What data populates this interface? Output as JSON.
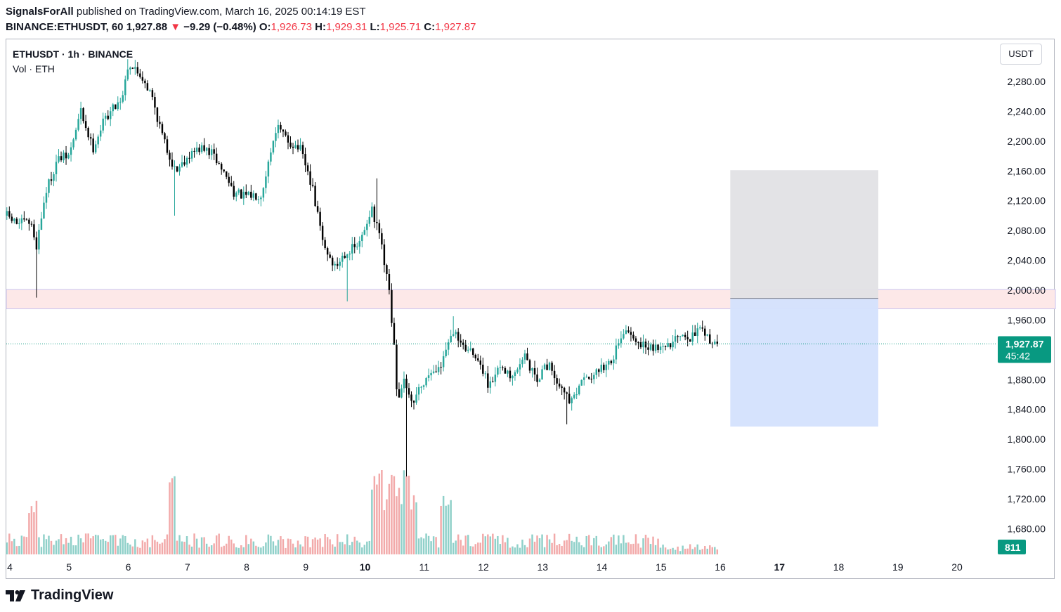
{
  "header": {
    "author": "SignalsForAll",
    "published_text": " published on TradingView.com, March 16, 2025 00:14:19 EST",
    "symbol_line": "BINANCE:ETHUSDT, 60",
    "last": "1,927.88",
    "change_arrow": "▼",
    "change": "−9.29 (−0.48%)",
    "o_label": "O:",
    "o_value": "1,926.73",
    "h_label": "H:",
    "h_value": "1,929.31",
    "l_label": "L:",
    "l_value": "1,925.71",
    "c_label": "C:",
    "c_value": "1,927.87"
  },
  "legend": {
    "symbol": "ETHUSDT · 1h · BINANCE",
    "volume": "Vol · ETH"
  },
  "currency_button": "USDT",
  "price_badge": {
    "price": "1,927.87",
    "countdown": "45:42"
  },
  "volume_badge": "811",
  "brand": "TradingView",
  "colors": {
    "up": "#26a69a",
    "down": "#000000",
    "vol_up": "#8fd0c9",
    "vol_down": "#f2a9a9",
    "badge": "#089981",
    "zone": "#fde8e8",
    "stop": "#e1e2e5",
    "target": "#d4e2fd"
  },
  "chart_data": {
    "type": "candlestick",
    "symbol": "ETHUSDT",
    "interval": "1h",
    "exchange": "BINANCE",
    "y_axis_labels": [
      "2,280.00",
      "2,240.00",
      "2,200.00",
      "2,160.00",
      "2,120.00",
      "2,080.00",
      "2,040.00",
      "2,000.00",
      "1,960.00",
      "1,880.00",
      "1,840.00",
      "1,800.00",
      "1,760.00",
      "1,720.00",
      "1,680.00"
    ],
    "y_axis_values": [
      2280,
      2240,
      2200,
      2160,
      2120,
      2080,
      2040,
      2000,
      1960,
      1880,
      1840,
      1800,
      1760,
      1720,
      1680
    ],
    "ylim": [
      1640,
      2320
    ],
    "x_axis_labels": [
      {
        "label": "4",
        "day": 4,
        "bold": false
      },
      {
        "label": "5",
        "day": 5,
        "bold": false
      },
      {
        "label": "6",
        "day": 6,
        "bold": false
      },
      {
        "label": "7",
        "day": 7,
        "bold": false
      },
      {
        "label": "8",
        "day": 8,
        "bold": false
      },
      {
        "label": "9",
        "day": 9,
        "bold": false
      },
      {
        "label": "10",
        "day": 10,
        "bold": true
      },
      {
        "label": "11",
        "day": 11,
        "bold": false
      },
      {
        "label": "12",
        "day": 12,
        "bold": false
      },
      {
        "label": "13",
        "day": 13,
        "bold": false
      },
      {
        "label": "14",
        "day": 14,
        "bold": false
      },
      {
        "label": "15",
        "day": 15,
        "bold": false
      },
      {
        "label": "16",
        "day": 16,
        "bold": false
      },
      {
        "label": "17",
        "day": 17,
        "bold": true
      },
      {
        "label": "18",
        "day": 18,
        "bold": false
      },
      {
        "label": "19",
        "day": 19,
        "bold": false
      },
      {
        "label": "20",
        "day": 20,
        "bold": false
      }
    ],
    "x_range_days": [
      3.95,
      20.8
    ],
    "last_day": 15.95,
    "last_price": 1927.87,
    "price_path": [
      [
        3.95,
        2100
      ],
      [
        4.1,
        2090
      ],
      [
        4.35,
        2090
      ],
      [
        4.45,
        2060
      ],
      [
        4.6,
        2130
      ],
      [
        4.8,
        2175
      ],
      [
        5.0,
        2180
      ],
      [
        5.2,
        2240
      ],
      [
        5.4,
        2190
      ],
      [
        5.6,
        2230
      ],
      [
        5.9,
        2260
      ],
      [
        6.0,
        2305
      ],
      [
        6.25,
        2285
      ],
      [
        6.4,
        2260
      ],
      [
        6.6,
        2200
      ],
      [
        6.8,
        2160
      ],
      [
        7.0,
        2180
      ],
      [
        7.2,
        2190
      ],
      [
        7.4,
        2185
      ],
      [
        7.6,
        2160
      ],
      [
        7.8,
        2130
      ],
      [
        8.0,
        2125
      ],
      [
        8.25,
        2130
      ],
      [
        8.5,
        2220
      ],
      [
        8.7,
        2200
      ],
      [
        8.9,
        2190
      ],
      [
        9.1,
        2140
      ],
      [
        9.3,
        2060
      ],
      [
        9.5,
        2030
      ],
      [
        9.65,
        2050
      ],
      [
        9.9,
        2060
      ],
      [
        10.1,
        2110
      ],
      [
        10.25,
        2070
      ],
      [
        10.4,
        2000
      ],
      [
        10.5,
        1920
      ],
      [
        10.55,
        1840
      ],
      [
        10.65,
        1880
      ],
      [
        10.8,
        1850
      ],
      [
        11.0,
        1880
      ],
      [
        11.3,
        1900
      ],
      [
        11.5,
        1950
      ],
      [
        11.7,
        1920
      ],
      [
        11.9,
        1910
      ],
      [
        12.1,
        1870
      ],
      [
        12.3,
        1900
      ],
      [
        12.5,
        1880
      ],
      [
        12.7,
        1910
      ],
      [
        12.9,
        1880
      ],
      [
        13.1,
        1900
      ],
      [
        13.3,
        1870
      ],
      [
        13.5,
        1850
      ],
      [
        13.7,
        1880
      ],
      [
        13.9,
        1890
      ],
      [
        14.1,
        1900
      ],
      [
        14.4,
        1940
      ],
      [
        14.6,
        1930
      ],
      [
        14.8,
        1925
      ],
      [
        15.0,
        1925
      ],
      [
        15.3,
        1935
      ],
      [
        15.5,
        1935
      ],
      [
        15.65,
        1945
      ],
      [
        15.8,
        1935
      ],
      [
        15.95,
        1927.87
      ]
    ],
    "wick_extremes": [
      {
        "day": 4.45,
        "low": 1990
      },
      {
        "day": 6.0,
        "high": 2310
      },
      {
        "day": 6.8,
        "low": 2100
      },
      {
        "day": 9.7,
        "low": 1985
      },
      {
        "day": 10.2,
        "high": 2150
      },
      {
        "day": 10.7,
        "low": 1750
      },
      {
        "day": 11.5,
        "high": 1965
      },
      {
        "day": 13.4,
        "low": 1820
      }
    ],
    "price_line": 1927.87,
    "support_zone": [
      1975,
      2001
    ],
    "position_tool": {
      "day_start": 16.17,
      "day_end": 18.67,
      "entry": 1989,
      "stop": 2161,
      "target": 1817
    }
  }
}
